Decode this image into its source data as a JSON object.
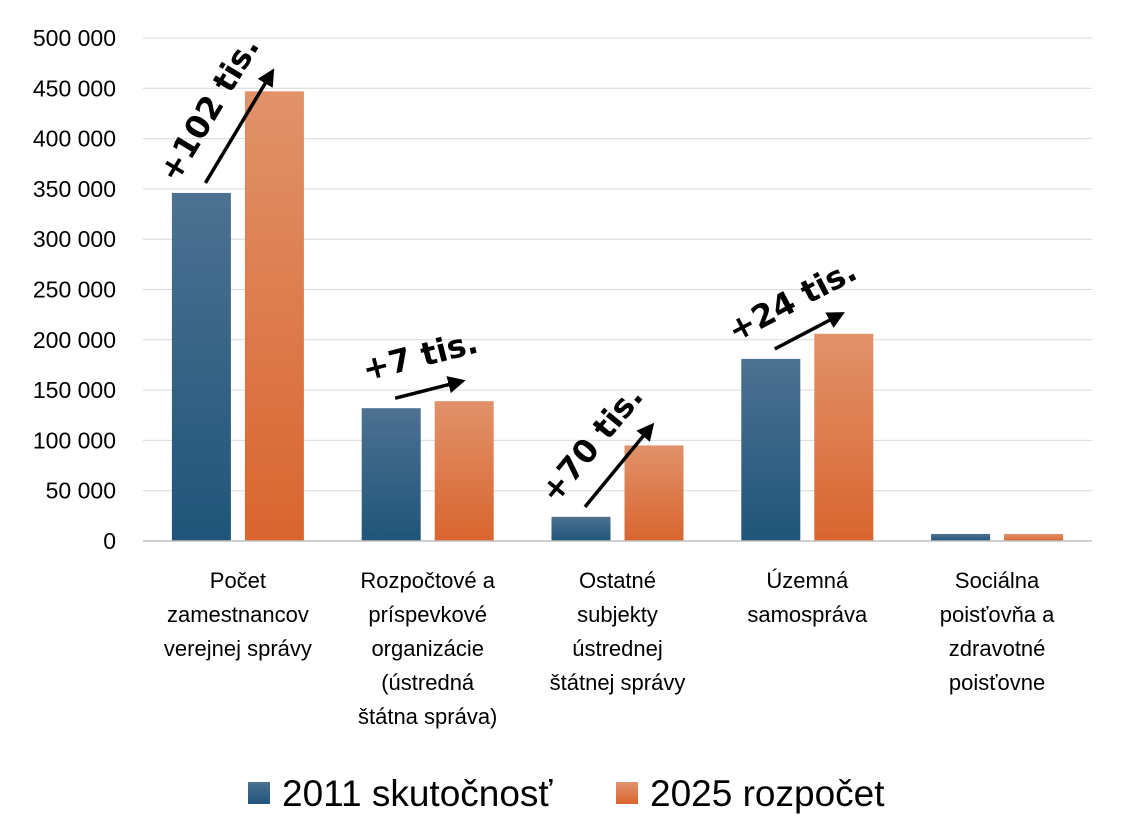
{
  "chart_data": {
    "type": "bar",
    "categories": [
      [
        "Počet",
        "zamestnancov",
        "verejnej správy"
      ],
      [
        "Rozpočtové a",
        "príspevkové",
        "organizácie",
        "(ústredná",
        "štátna správa)"
      ],
      [
        "Ostatné",
        "subjekty",
        "ústrednej",
        "štátnej správy"
      ],
      [
        "Územná",
        "samospráva"
      ],
      [
        "Sociálna",
        "poisťovňa a",
        "zdravotné",
        "poisťovne"
      ]
    ],
    "series": [
      {
        "name": "2011 skutočnosť",
        "color": "#2a5a80",
        "values": [
          346000,
          132000,
          24000,
          181000,
          7000
        ]
      },
      {
        "name": "2025 rozpočet",
        "color": "#e26f35",
        "values": [
          447000,
          139000,
          95000,
          206000,
          7000
        ]
      }
    ],
    "yticks": [
      "0",
      "50 000",
      "100 000",
      "150 000",
      "200 000",
      "250 000",
      "300 000",
      "350 000",
      "400 000",
      "450 000",
      "500 000"
    ],
    "ylim": [
      0,
      500000
    ],
    "grid": true,
    "legend": "bottom",
    "annotations": [
      {
        "category": 0,
        "text": "+102 tis."
      },
      {
        "category": 1,
        "text": "+7 tis."
      },
      {
        "category": 2,
        "text": "+70 tis."
      },
      {
        "category": 3,
        "text": "+24 tis."
      }
    ],
    "title": "",
    "xlabel": "",
    "ylabel": ""
  }
}
